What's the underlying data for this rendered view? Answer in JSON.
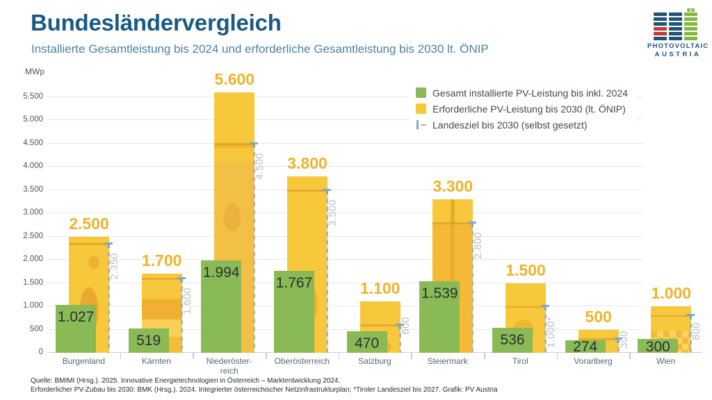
{
  "footer": {
    "line1": "Quelle: BMIMI (Hrsg.). 2025. Innovative Energietechnologien in Österreich – Marktentwicklung 2024.",
    "line2": "Erforderlicher PV-Zubau bis 2030: BMK (Hrsg.). 2024. Integrierter österreichischer Netzinfrastrukturplan; *Tiroler Landesziel bis 2027. Grafik: PV Austria"
  },
  "logo": {
    "text_line1": "PHOTOVOLTAIC",
    "text_line2": "AUSTRIA",
    "cap_symbol": "+",
    "colors": {
      "b": "#1f5377",
      "r": "#c23b36",
      "g": "#83b840"
    },
    "columns": [
      [
        "b",
        "b",
        "b",
        "r",
        "r",
        "b"
      ],
      [
        "b",
        "b",
        "b",
        "b",
        "b",
        "b"
      ],
      [
        "g",
        "g",
        "g",
        "g",
        "g",
        "g"
      ]
    ]
  },
  "chart_data": {
    "type": "bar",
    "title": "Bundesländervergleich",
    "subtitle": "Installierte Gesamtleistung bis 2024 und erforderliche Gesamtleistung bis 2030 lt. ÖNIP",
    "unit_label": "MWp",
    "ylim": [
      0,
      5600
    ],
    "grid": true,
    "legend_position": "top-right",
    "yticks": [
      0,
      500,
      1000,
      1500,
      2000,
      2500,
      3000,
      3500,
      4000,
      4500,
      5000,
      5500
    ],
    "ytick_labels": [
      "0",
      "500",
      "1.000",
      "1.500",
      "2.000",
      "2.500",
      "3.000",
      "3.500",
      "4.000",
      "4.500",
      "5.000",
      "5.500"
    ],
    "categories": [
      "Burgenland",
      "Kärnten",
      "Niederöster-|reich",
      "Oberösterreich",
      "Salzburg",
      "Steiermark",
      "Tirol",
      "Vorarlberg",
      "Wien"
    ],
    "series": [
      {
        "name": "Gesamt installierte PV-Leistung bis inkl. 2024",
        "color": "#8aba55",
        "values": [
          1027,
          519,
          1994,
          1767,
          470,
          1539,
          536,
          274,
          300
        ],
        "labels": [
          "1.027",
          "519",
          "1.994",
          "1.767",
          "470",
          "1.539",
          "536",
          "274",
          "300"
        ]
      },
      {
        "name": "Erforderliche PV-Leistung bis 2030 (lt. ÖNIP)",
        "color": "#f7c73c",
        "label_color": "#f0b32a",
        "values": [
          2500,
          1700,
          5600,
          3800,
          1100,
          3300,
          1500,
          500,
          1000
        ],
        "labels": [
          "2.500",
          "1.700",
          "5.600",
          "3.800",
          "1.100",
          "3.300",
          "1.500",
          "500",
          "1.000"
        ]
      },
      {
        "name": "Landesziel bis 2030 (selbst gesetzt)",
        "style": "dashed_target",
        "line_color": "#abb2b8",
        "cap_color": "#7fa9c0",
        "values": [
          2350,
          1600,
          4500,
          3500,
          600,
          2800,
          1000,
          300,
          800
        ],
        "labels": [
          "2.350",
          "1.600",
          "4.500",
          "3.500",
          "600",
          "2.800",
          "1.000*",
          "300",
          "800"
        ]
      }
    ]
  }
}
